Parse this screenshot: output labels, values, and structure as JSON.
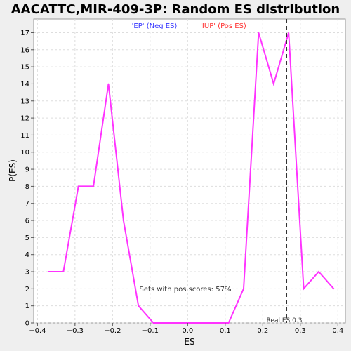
{
  "chart_data": {
    "type": "line",
    "title": "AACATTC,MIR-409-3P: Random ES distribution",
    "xlabel": "ES",
    "ylabel": "P(ES)",
    "xlim": [
      -0.41,
      0.42
    ],
    "ylim": [
      0,
      17.8
    ],
    "x_ticks": [
      -0.4,
      -0.3,
      -0.2,
      -0.1,
      0.0,
      0.1,
      0.2,
      0.3,
      0.4
    ],
    "x_tick_labels": [
      "−0.4",
      "−0.3",
      "−0.2",
      "−0.1",
      "0.0",
      "0.1",
      "0.2",
      "0.3",
      "0.4"
    ],
    "y_ticks": [
      0,
      1,
      2,
      3,
      4,
      5,
      6,
      7,
      8,
      9,
      10,
      11,
      12,
      13,
      14,
      15,
      16,
      17
    ],
    "y_tick_labels": [
      "0",
      "1",
      "2",
      "3",
      "4",
      "5",
      "6",
      "7",
      "8",
      "9",
      "10",
      "11",
      "12",
      "13",
      "14",
      "15",
      "16",
      "17"
    ],
    "grid": true,
    "series": [
      {
        "color": "#ff33ff",
        "x": [
          -0.371,
          -0.331,
          -0.291,
          -0.251,
          -0.211,
          -0.171,
          -0.131,
          -0.091,
          -0.051,
          -0.011,
          0.029,
          0.069,
          0.109,
          0.149,
          0.189,
          0.229,
          0.269,
          0.309,
          0.349,
          0.389
        ],
        "y": [
          3,
          3,
          8,
          8,
          14,
          6,
          1,
          0,
          0,
          0,
          0,
          0,
          0,
          2,
          17,
          14,
          17,
          2,
          3,
          2
        ]
      }
    ],
    "real_es": 0.263,
    "real_es_label": "Real ES 0.3",
    "legend": {
      "neg_label": "'EP' (Neg ES)",
      "pos_label": "'IUP' (Pos ES)",
      "neg_color": "#3333ff",
      "pos_color": "#ff3333",
      "placement": "top"
    },
    "annotation": "Sets with pos scores: 57%"
  },
  "colors": {
    "plot_bg": "#ffffff",
    "page_bg": "#efefef",
    "line": "#ff33ff",
    "grid": "#dddddd"
  }
}
